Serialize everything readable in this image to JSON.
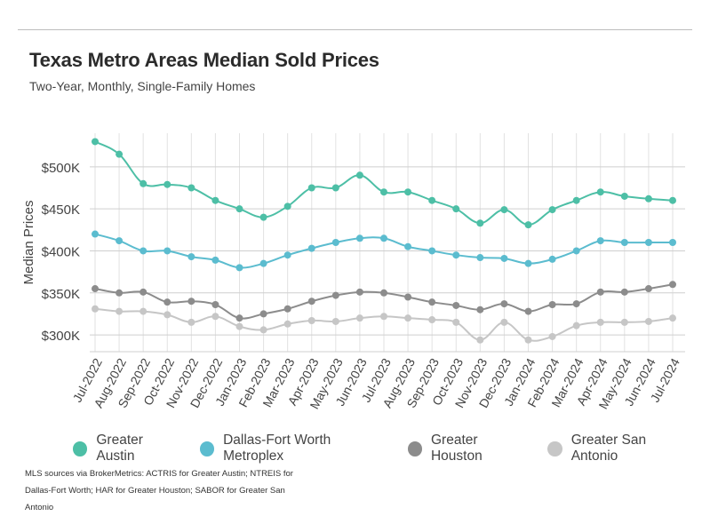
{
  "header": {
    "title": "Texas Metro Areas Median Sold Prices",
    "subtitle": "Two-Year, Monthly, Single-Family Homes"
  },
  "source_note": "MLS sources via BrokerMetrics: ACTRIS for Greater Austin; NTREIS for Dallas-Fort Worth; HAR for Greater Houston; SABOR for Greater San Antonio",
  "chart_data": {
    "type": "line",
    "title": "Texas Metro Areas Median Sold Prices",
    "subtitle": "Two-Year, Monthly, Single-Family Homes",
    "xlabel": "",
    "ylabel": "Median Prices",
    "ylim": [
      280000,
      540000
    ],
    "yticks": [
      300000,
      350000,
      400000,
      450000,
      500000
    ],
    "ytick_labels": [
      "$300K",
      "$350K",
      "$400K",
      "$450K",
      "$500K"
    ],
    "grid": true,
    "legend_position": "bottom",
    "categories": [
      "Jul-2022",
      "Aug-2022",
      "Sep-2022",
      "Oct-2022",
      "Nov-2022",
      "Dec-2022",
      "Jan-2023",
      "Feb-2023",
      "Mar-2023",
      "Apr-2023",
      "May-2023",
      "Jun-2023",
      "Jul-2023",
      "Aug-2023",
      "Sep-2023",
      "Oct-2023",
      "Nov-2023",
      "Dec-2023",
      "Jan-2024",
      "Feb-2024",
      "Mar-2024",
      "Apr-2024",
      "May-2024",
      "Jun-2024",
      "Jul-2024"
    ],
    "series": [
      {
        "name": "Greater Austin",
        "color": "#4dbfa6",
        "values": [
          530000,
          515000,
          480000,
          479000,
          475000,
          460000,
          450000,
          440000,
          453000,
          475000,
          475000,
          490000,
          470000,
          470000,
          460000,
          450000,
          433000,
          449000,
          431000,
          449000,
          460000,
          470000,
          465000,
          462000,
          460000
        ]
      },
      {
        "name": "Dallas-Fort Worth Metroplex",
        "color": "#5bbccf",
        "values": [
          420000,
          412000,
          400000,
          400000,
          393000,
          389000,
          380000,
          385000,
          395000,
          403000,
          410000,
          415000,
          415000,
          405000,
          400000,
          395000,
          392000,
          391000,
          385000,
          390000,
          400000,
          412000,
          410000,
          410000,
          410000
        ]
      },
      {
        "name": "Greater Houston",
        "color": "#8c8c8c",
        "values": [
          355000,
          350000,
          351000,
          339000,
          340000,
          336000,
          320000,
          325000,
          331000,
          340000,
          347000,
          351000,
          350000,
          345000,
          339000,
          335000,
          330000,
          337000,
          328000,
          336000,
          337000,
          351000,
          351000,
          355000,
          360000
        ]
      },
      {
        "name": "Greater San Antonio",
        "color": "#c6c6c6",
        "values": [
          331000,
          328000,
          328000,
          324000,
          315000,
          322000,
          310000,
          306000,
          313000,
          317000,
          316000,
          320000,
          322000,
          320000,
          318000,
          315000,
          294000,
          315000,
          294000,
          298000,
          311000,
          315000,
          315000,
          316000,
          320000
        ]
      }
    ]
  }
}
